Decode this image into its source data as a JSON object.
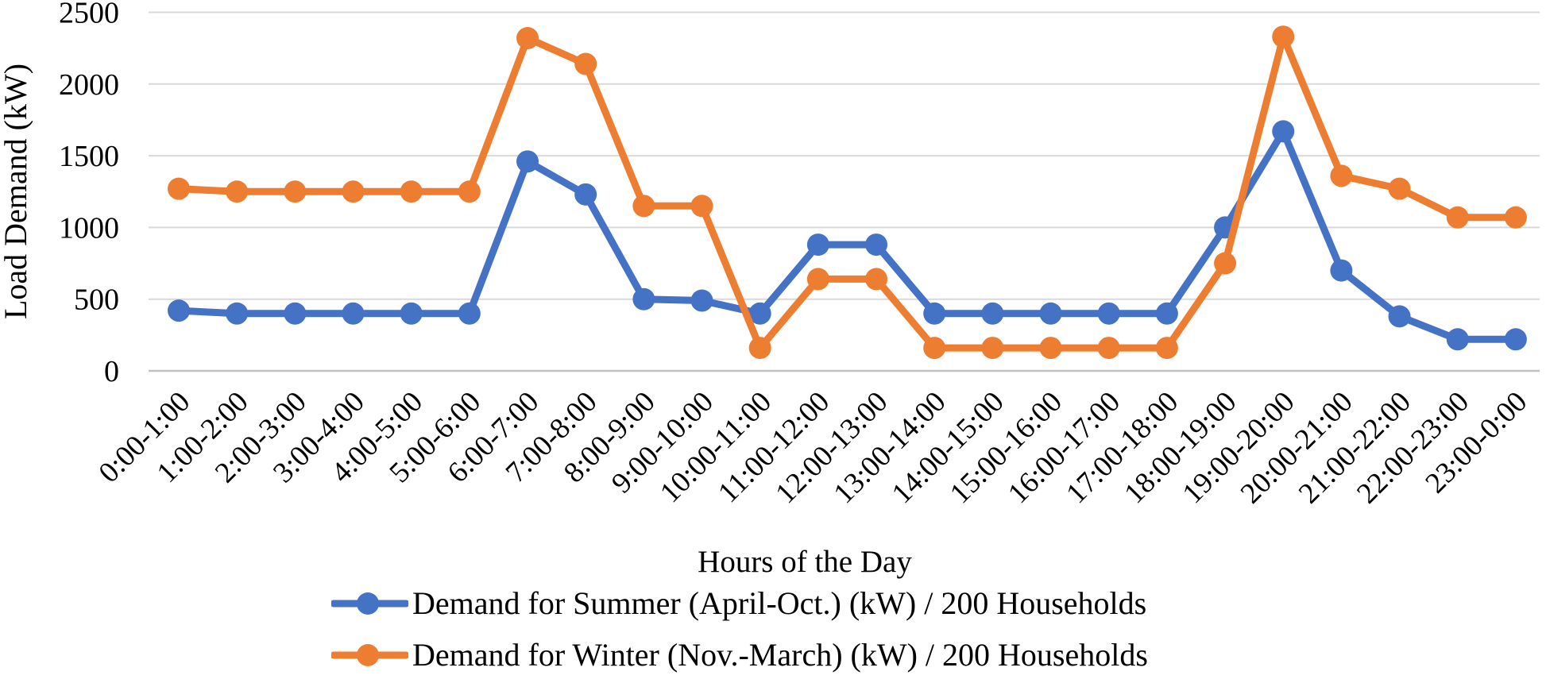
{
  "chart_data": {
    "type": "line",
    "title": "",
    "xlabel": "Hours of the Day",
    "ylabel": "Load Demand (kW)",
    "categories": [
      "0:00-1:00",
      "1:00-2:00",
      "2:00-3:00",
      "3:00-4:00",
      "4:00-5:00",
      "5:00-6:00",
      "6:00-7:00",
      "7:00-8:00",
      "8:00-9:00",
      "9:00-10:00",
      "10:00-11:00",
      "11:00-12:00",
      "12:00-13:00",
      "13:00-14:00",
      "14:00-15:00",
      "15:00-16:00",
      "16:00-17:00",
      "17:00-18:00",
      "18:00-19:00",
      "19:00-20:00",
      "20:00-21:00",
      "21:00-22:00",
      "22:00-23:00",
      "23:00-0:00"
    ],
    "series": [
      {
        "name": "Demand for Summer (April-Oct.) (kW) / 200 Households",
        "color": "#4472C4",
        "values": [
          420,
          400,
          400,
          400,
          400,
          400,
          1460,
          1230,
          500,
          490,
          400,
          880,
          880,
          400,
          400,
          400,
          400,
          400,
          1000,
          1670,
          700,
          380,
          220,
          220
        ]
      },
      {
        "name": "Demand for Winter (Nov.-March) (kW) / 200 Households",
        "color": "#ED7D31",
        "values": [
          1270,
          1250,
          1250,
          1250,
          1250,
          1250,
          2320,
          2140,
          1150,
          1150,
          160,
          640,
          640,
          160,
          160,
          160,
          160,
          160,
          750,
          2330,
          1360,
          1270,
          1070,
          1070
        ]
      }
    ],
    "yticks": [
      0,
      500,
      1000,
      1500,
      2000,
      2500
    ],
    "ylim": [
      0,
      2500
    ],
    "grid": "horizontal",
    "legend_position": "bottom",
    "gridline_color": "#D9D9D9",
    "axisline_color": "#C0C0C0",
    "marker": "circle",
    "marker_radius": 14,
    "line_width": 9
  }
}
